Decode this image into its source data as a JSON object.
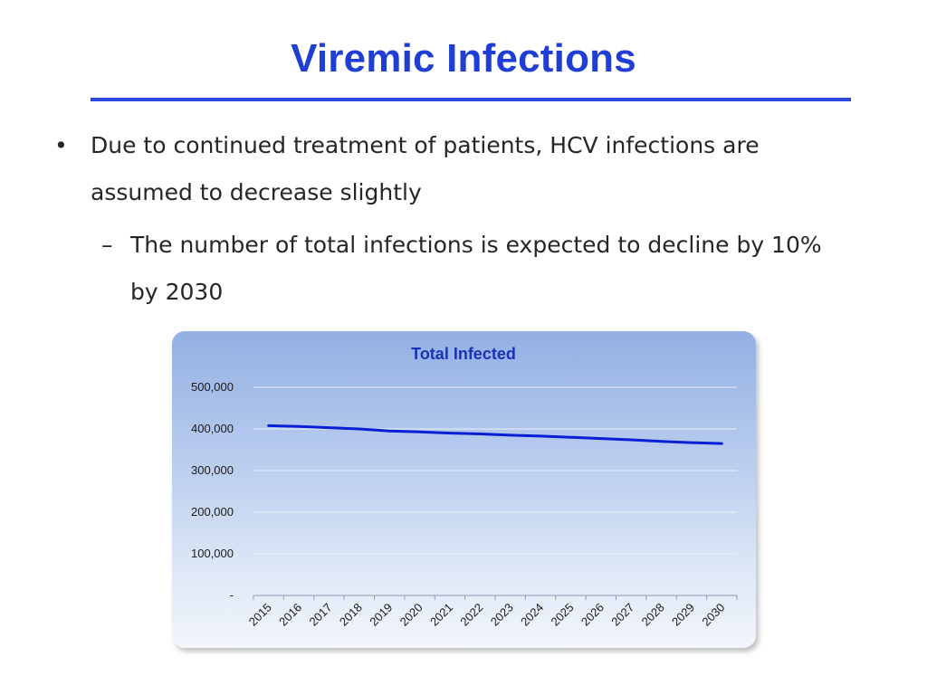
{
  "slide": {
    "title": "Viremic Infections",
    "bullets": [
      {
        "marker": "•",
        "text": "Due to continued treatment of patients, HCV infections are assumed to decrease slightly"
      },
      {
        "marker": "–",
        "text": "The number of total infections is expected to decline by 10% by 2030"
      }
    ]
  },
  "colors": {
    "title": "#1f3ed6",
    "rule": "#2b48e0",
    "series_line": "#0a1ed6",
    "grid": "#e8eef8"
  },
  "chart_data": {
    "type": "line",
    "title": "Total Infected",
    "xlabel": "",
    "ylabel": "",
    "categories": [
      "2015",
      "2016",
      "2017",
      "2018",
      "2019",
      "2020",
      "2021",
      "2022",
      "2023",
      "2024",
      "2025",
      "2026",
      "2027",
      "2028",
      "2029",
      "2030"
    ],
    "series": [
      {
        "name": "",
        "values": [
          408000,
          406000,
          403000,
          400000,
          395000,
          393000,
          390000,
          388000,
          385000,
          383000,
          380000,
          377000,
          374000,
          370000,
          367000,
          365000
        ]
      }
    ],
    "ylim": [
      0,
      500000
    ],
    "yticks": [
      {
        "value": 500000,
        "label": "500,000"
      },
      {
        "value": 400000,
        "label": "400,000"
      },
      {
        "value": 300000,
        "label": "300,000"
      },
      {
        "value": 200000,
        "label": "200,000"
      },
      {
        "value": 100000,
        "label": "100,000"
      },
      {
        "value": 0,
        "label": "-"
      }
    ],
    "grid": true,
    "legend": "none"
  }
}
